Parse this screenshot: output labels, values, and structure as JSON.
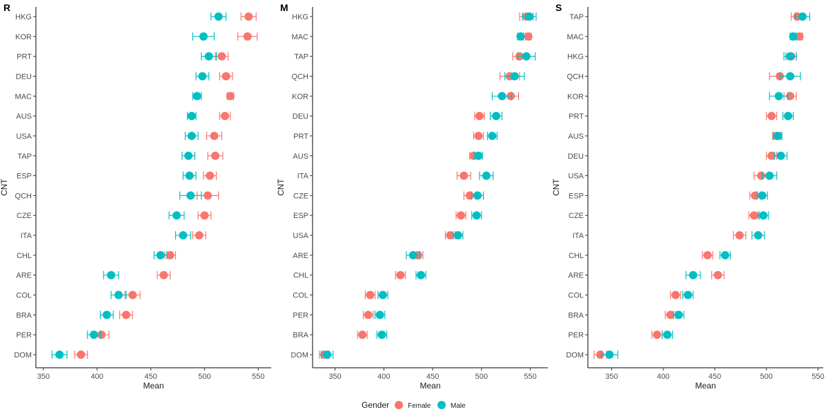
{
  "legend": {
    "title": "Gender",
    "entries": [
      {
        "label": "Female",
        "color": "#F8766D"
      },
      {
        "label": "Male",
        "color": "#00BFC4"
      }
    ]
  },
  "chart_data": [
    {
      "type": "scatter",
      "panel_tag": "R",
      "xlabel": "Mean",
      "ylabel": "CNT",
      "xlim": [
        343,
        562
      ],
      "xticks": [
        350,
        400,
        450,
        500,
        550
      ],
      "grid": false,
      "error_bars": true,
      "categories": [
        "HKG",
        "KOR",
        "PRT",
        "DEU",
        "MAC",
        "AUS",
        "USA",
        "TAP",
        "ESP",
        "QCH",
        "CZE",
        "ITA",
        "CHL",
        "ARE",
        "COL",
        "BRA",
        "PER",
        "DOM"
      ],
      "series": [
        {
          "name": "Female",
          "color": "#F8766D",
          "values": [
            541,
            540,
            516,
            520,
            524,
            519,
            509,
            510,
            505,
            503,
            500,
            495,
            468,
            462,
            433,
            427,
            404,
            385
          ],
          "errors": [
            7,
            9,
            6,
            6,
            3,
            5,
            7,
            7,
            6,
            10,
            6,
            6,
            5,
            6,
            7,
            6,
            7,
            6
          ]
        },
        {
          "name": "Male",
          "color": "#00BFC4",
          "values": [
            513,
            499,
            504,
            498,
            493,
            488,
            488,
            485,
            486,
            487,
            474,
            480,
            459,
            413,
            420,
            409,
            397,
            365
          ],
          "errors": [
            7,
            10,
            7,
            6,
            4,
            4,
            6,
            6,
            6,
            10,
            7,
            7,
            6,
            7,
            7,
            6,
            6,
            7
          ]
        }
      ]
    },
    {
      "type": "scatter",
      "panel_tag": "M",
      "xlabel": "Mean",
      "ylabel": "CNT",
      "xlim": [
        327,
        568
      ],
      "xticks": [
        350,
        400,
        450,
        500,
        550
      ],
      "grid": false,
      "error_bars": true,
      "categories": [
        "HKG",
        "MAC",
        "TAP",
        "QCH",
        "KOR",
        "DEU",
        "PRT",
        "AUS",
        "ITA",
        "CZE",
        "ESP",
        "USA",
        "ARE",
        "CHL",
        "COL",
        "PER",
        "BRA",
        "DOM"
      ],
      "series": [
        {
          "name": "Female",
          "color": "#F8766D",
          "values": [
            546,
            548,
            539,
            529,
            530,
            498,
            497,
            492,
            482,
            488,
            479,
            468,
            435,
            417,
            386,
            384,
            378,
            339
          ],
          "errors": [
            7,
            3,
            7,
            10,
            8,
            5,
            5,
            4,
            7,
            6,
            5,
            5,
            5,
            5,
            5,
            5,
            5,
            5
          ]
        },
        {
          "name": "Male",
          "color": "#00BFC4",
          "values": [
            549,
            540,
            546,
            534,
            521,
            515,
            511,
            497,
            505,
            496,
            495,
            476,
            430,
            438,
            399,
            396,
            398,
            342
          ],
          "errors": [
            7,
            3,
            9,
            10,
            10,
            6,
            5,
            4,
            7,
            6,
            5,
            5,
            7,
            5,
            5,
            5,
            5,
            6
          ]
        }
      ]
    },
    {
      "type": "scatter",
      "panel_tag": "S",
      "xlabel": "Mean",
      "ylabel": "CNT",
      "xlim": [
        327,
        555
      ],
      "xticks": [
        350,
        400,
        450,
        500,
        550
      ],
      "grid": false,
      "error_bars": true,
      "categories": [
        "TAP",
        "MAC",
        "HKG",
        "QCH",
        "KOR",
        "PRT",
        "AUS",
        "DEU",
        "USA",
        "ESP",
        "CZE",
        "ITA",
        "CHL",
        "ARE",
        "COL",
        "BRA",
        "PER",
        "DOM"
      ],
      "series": [
        {
          "name": "Female",
          "color": "#F8766D",
          "values": [
            530,
            532,
            524,
            513,
            523,
            505,
            510,
            505,
            495,
            489,
            488,
            474,
            443,
            453,
            412,
            407,
            394,
            339
          ],
          "errors": [
            6,
            3,
            5,
            10,
            6,
            5,
            4,
            5,
            7,
            5,
            5,
            6,
            5,
            6,
            5,
            5,
            5,
            6
          ]
        },
        {
          "name": "Male",
          "color": "#00BFC4",
          "values": [
            535,
            526,
            523,
            523,
            512,
            521,
            511,
            514,
            503,
            496,
            497,
            492,
            460,
            429,
            424,
            415,
            404,
            348
          ],
          "errors": [
            7,
            3,
            6,
            10,
            9,
            5,
            4,
            6,
            7,
            5,
            5,
            6,
            5,
            7,
            5,
            5,
            5,
            8
          ]
        }
      ]
    }
  ]
}
